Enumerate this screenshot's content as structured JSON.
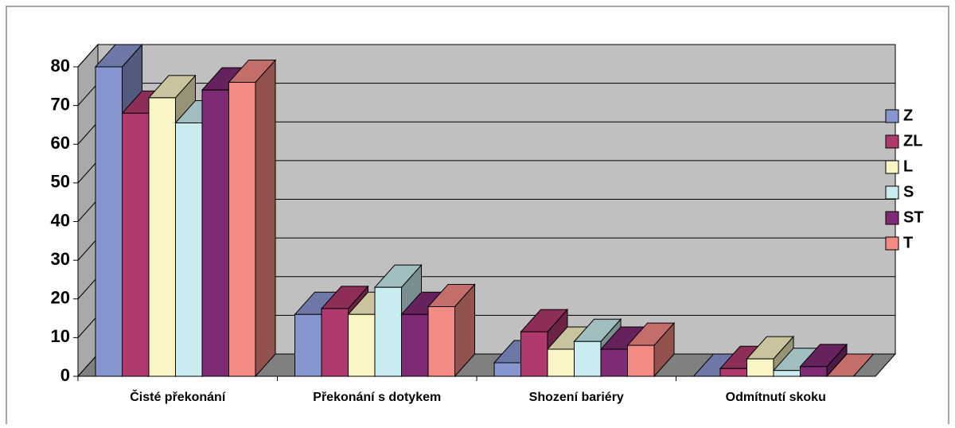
{
  "chart_data": {
    "type": "bar3d",
    "categories": [
      "Čisté překonání",
      "Překonání s dotykem",
      "Shození bariéry",
      "Odmítnutí skoku"
    ],
    "series": [
      {
        "name": "Z",
        "color": "#8896d0",
        "values": [
          80,
          16,
          3.5,
          0
        ]
      },
      {
        "name": "ZL",
        "color": "#b03a6e",
        "values": [
          68,
          17.5,
          11.5,
          2
        ]
      },
      {
        "name": "L",
        "color": "#fbf5c6",
        "values": [
          72,
          16,
          7,
          4.5
        ]
      },
      {
        "name": "S",
        "color": "#c8ecf0",
        "values": [
          65.5,
          23,
          9,
          1.5
        ]
      },
      {
        "name": "ST",
        "color": "#7e2a74",
        "values": [
          74,
          16,
          7,
          2.5
        ]
      },
      {
        "name": "T",
        "color": "#f48a84",
        "values": [
          76,
          18,
          8,
          0
        ]
      }
    ],
    "ylim": [
      0,
      80
    ],
    "yticks": [
      0,
      10,
      20,
      30,
      40,
      50,
      60,
      70,
      80
    ],
    "grid": true,
    "legend": "right"
  }
}
